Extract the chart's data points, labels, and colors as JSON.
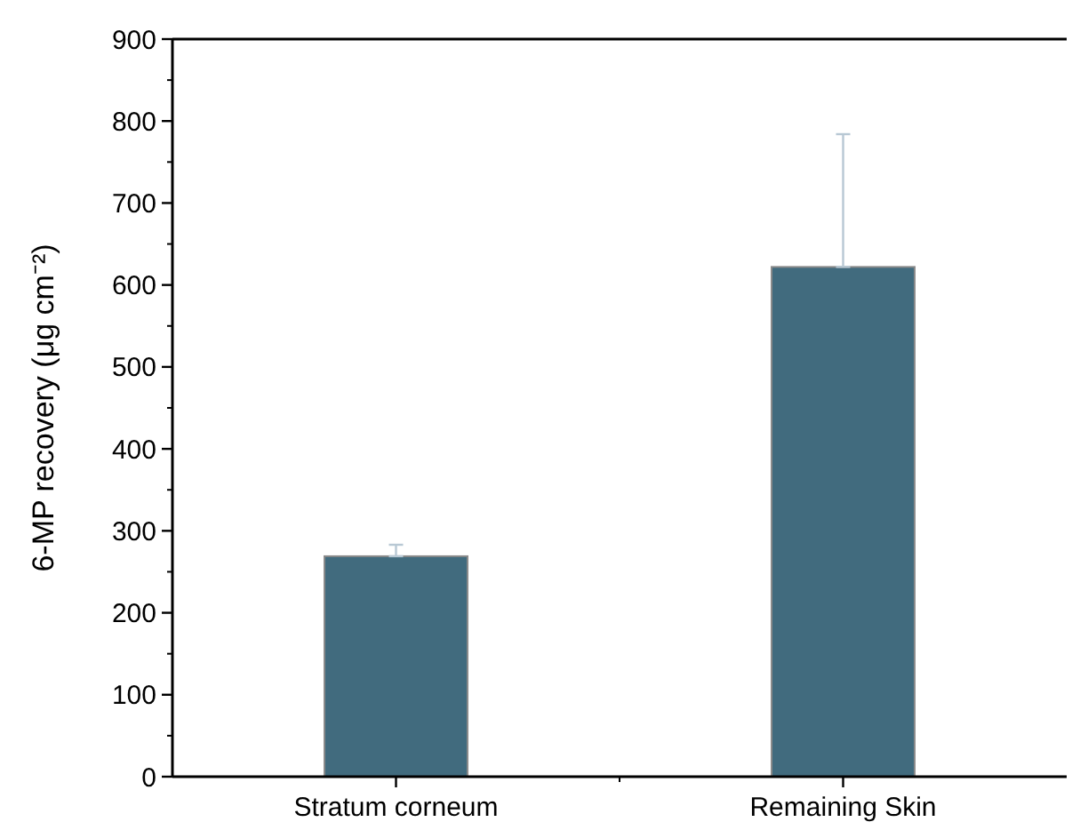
{
  "chart_data": {
    "type": "bar",
    "ylabel": "6-MP recovery (μg cm⁻²)",
    "categories": [
      "Stratum corneum",
      "Remaining Skin"
    ],
    "values": [
      269,
      622
    ],
    "errors": [
      [
        269,
        283
      ],
      [
        622,
        784
      ]
    ],
    "color": "#416b7e",
    "ylim": [
      0,
      900
    ],
    "yticks": [
      0,
      100,
      200,
      300,
      400,
      500,
      600,
      700,
      800,
      900
    ]
  }
}
